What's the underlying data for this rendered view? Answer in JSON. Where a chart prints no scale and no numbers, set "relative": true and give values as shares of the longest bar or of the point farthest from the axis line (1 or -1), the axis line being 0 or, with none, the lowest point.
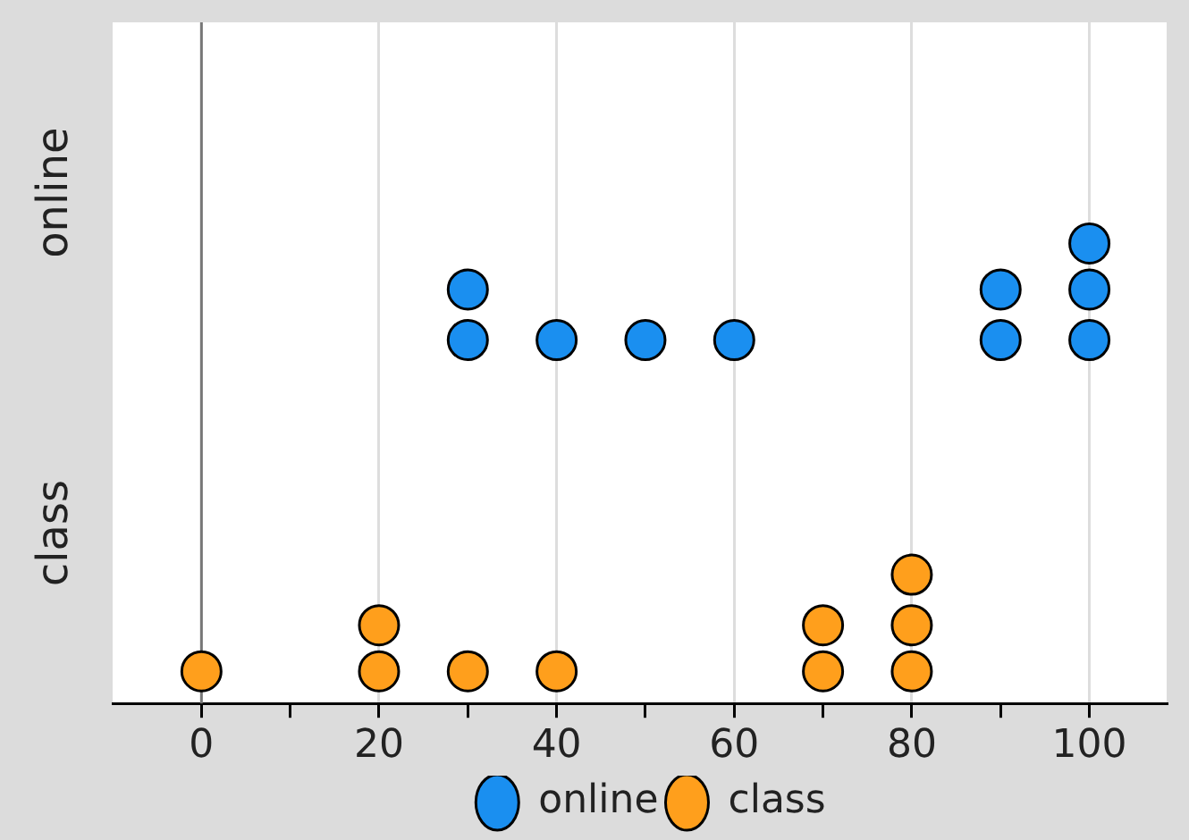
{
  "chart_data": {
    "type": "scatter",
    "relative": true,
    "y_categories": [
      "online",
      "class"
    ],
    "series": [
      {
        "name": "online",
        "color": "#1a8ff0",
        "x": [
          30,
          30,
          40,
          50,
          60,
          90,
          90,
          100,
          100,
          100
        ],
        "values": [
          0.79,
          0.9,
          0.79,
          0.79,
          0.79,
          0.79,
          0.9,
          0.79,
          0.9,
          1
        ]
      },
      {
        "name": "class",
        "color": "#ff9f1c",
        "x": [
          0,
          20,
          20,
          30,
          40,
          70,
          70,
          80,
          80,
          80
        ],
        "values": [
          0.07,
          0.07,
          0.17,
          0.07,
          0.07,
          0.07,
          0.17,
          0.07,
          0.17,
          0.28
        ]
      }
    ],
    "xlim": [
      -10,
      108.7
    ],
    "xticks": [
      0,
      {
        "value": 10,
        "label": null
      },
      20,
      {
        "value": 30,
        "label": null
      },
      40,
      {
        "value": 50,
        "label": null
      },
      60,
      {
        "value": 70,
        "label": null
      },
      80,
      {
        "value": 90,
        "label": null
      },
      100
    ],
    "ref_lines": [
      {
        "axis": "x",
        "value": 0,
        "color": "#777777"
      }
    ],
    "grid": "x",
    "legend": "bottom",
    "marker": "circle"
  }
}
